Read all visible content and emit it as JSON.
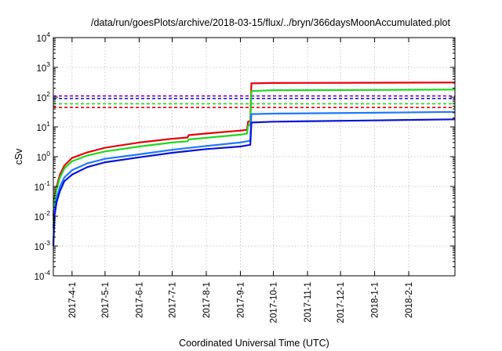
{
  "chart_data": {
    "type": "line",
    "title": "/data/run/goesPlots/archive/2018-03-15/flux/../bryn/366daysMoonAccumulated.plot",
    "xlabel": "Coordinated Universal Time (UTC)",
    "ylabel": "cSv",
    "yscale": "log",
    "ylim_exp": [
      -4,
      4
    ],
    "xlim": [
      "2017-03-15",
      "2018-03-15"
    ],
    "x_tick_labels": [
      "2017-4-1",
      "2017-5-1",
      "2017-6-1",
      "2017-7-1",
      "2017-8-1",
      "2017-9-1",
      "2017-10-1",
      "2017-11-1",
      "2017-12-1",
      "2018-1-1",
      "2018-2-1"
    ],
    "y_tick_labels": [
      {
        "base": "10",
        "exp": "-4"
      },
      {
        "base": "10",
        "exp": "-3"
      },
      {
        "base": "10",
        "exp": "-2"
      },
      {
        "base": "10",
        "exp": "-1"
      },
      {
        "base": "10",
        "exp": "0"
      },
      {
        "base": "10",
        "exp": "1"
      },
      {
        "base": "10",
        "exp": "2"
      },
      {
        "base": "10",
        "exp": "3"
      },
      {
        "base": "10",
        "exp": "4"
      }
    ],
    "grid": true,
    "series": [
      {
        "color": "#e8000b",
        "x": [
          "2017-03-15",
          "2017-03-16",
          "2017-03-18",
          "2017-03-21",
          "2017-03-25",
          "2017-04-01",
          "2017-04-15",
          "2017-05-01",
          "2017-06-01",
          "2017-07-01",
          "2017-07-15",
          "2017-07-16",
          "2017-08-01",
          "2017-09-01",
          "2017-09-07",
          "2017-09-08",
          "2017-09-10",
          "2017-09-11",
          "2017-10-01",
          "2018-01-01",
          "2018-03-15"
        ],
        "y": [
          0.01,
          0.04,
          0.1,
          0.25,
          0.5,
          0.9,
          1.4,
          2.0,
          3.0,
          4.0,
          4.4,
          5.3,
          6.0,
          7.5,
          8.0,
          15,
          16,
          290,
          300,
          305,
          310
        ]
      },
      {
        "color": "#1ed81e",
        "x": [
          "2017-03-15",
          "2017-03-16",
          "2017-03-18",
          "2017-03-21",
          "2017-03-25",
          "2017-04-01",
          "2017-04-15",
          "2017-05-01",
          "2017-06-01",
          "2017-07-01",
          "2017-07-15",
          "2017-07-16",
          "2017-08-01",
          "2017-09-01",
          "2017-09-07",
          "2017-09-08",
          "2017-09-10",
          "2017-09-11",
          "2017-10-01",
          "2018-01-01",
          "2018-03-15"
        ],
        "y": [
          0.007,
          0.03,
          0.08,
          0.2,
          0.4,
          0.7,
          1.1,
          1.5,
          2.2,
          3.0,
          3.3,
          3.8,
          4.3,
          5.5,
          6.0,
          11,
          12,
          160,
          170,
          175,
          180
        ]
      },
      {
        "color": "#1e78ff",
        "x": [
          "2017-03-15",
          "2017-03-16",
          "2017-03-18",
          "2017-03-21",
          "2017-03-25",
          "2017-04-01",
          "2017-04-15",
          "2017-05-01",
          "2017-06-01",
          "2017-07-01",
          "2017-08-01",
          "2017-09-01",
          "2017-09-07",
          "2017-09-10",
          "2017-09-11",
          "2017-10-01",
          "2018-01-01",
          "2018-03-15"
        ],
        "y": [
          0.004,
          0.015,
          0.04,
          0.1,
          0.2,
          0.35,
          0.6,
          0.85,
          1.2,
          1.7,
          2.3,
          3.0,
          3.3,
          3.5,
          27,
          28,
          30,
          32
        ]
      },
      {
        "color": "#0a14d8",
        "x": [
          "2017-03-15",
          "2017-03-16",
          "2017-03-18",
          "2017-03-21",
          "2017-03-25",
          "2017-04-01",
          "2017-04-15",
          "2017-05-01",
          "2017-06-01",
          "2017-07-01",
          "2017-08-01",
          "2017-09-01",
          "2017-09-07",
          "2017-09-10",
          "2017-09-11",
          "2017-10-01",
          "2018-01-01",
          "2018-03-15"
        ],
        "y": [
          0.001,
          0.01,
          0.03,
          0.07,
          0.15,
          0.25,
          0.45,
          0.65,
          0.95,
          1.35,
          1.8,
          2.2,
          2.4,
          2.5,
          14,
          15,
          16.5,
          18
        ]
      }
    ],
    "reference_lines": [
      {
        "color": "#8800cc",
        "y": 110
      },
      {
        "color": "#0a14d8",
        "y": 90
      },
      {
        "color": "#1ed81e",
        "y": 60
      },
      {
        "color": "#e8000b",
        "y": 45
      }
    ]
  }
}
